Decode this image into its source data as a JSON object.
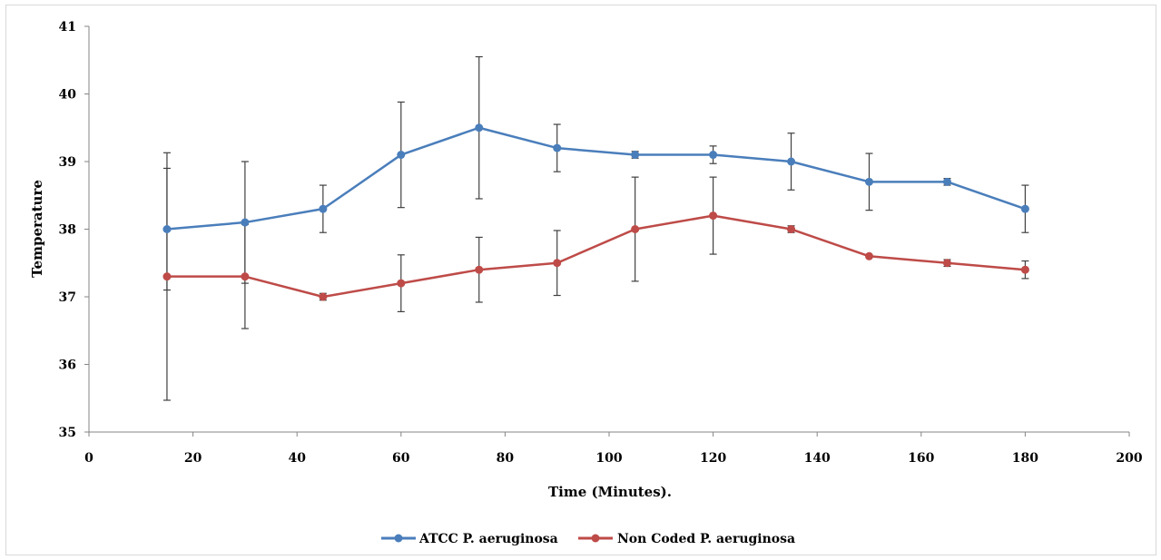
{
  "chart_data": {
    "type": "line",
    "title": "",
    "xlabel": "Time (Minutes).",
    "ylabel": "Temperature",
    "xlim": [
      0,
      200
    ],
    "ylim": [
      35,
      41
    ],
    "x_ticks": [
      0,
      20,
      40,
      60,
      80,
      100,
      120,
      140,
      160,
      180,
      200
    ],
    "y_ticks": [
      35,
      36,
      37,
      38,
      39,
      40,
      41
    ],
    "grid": false,
    "legend_position": "bottom",
    "x": [
      15,
      30,
      45,
      60,
      75,
      90,
      105,
      120,
      135,
      150,
      165,
      180
    ],
    "series": [
      {
        "name": "ATCC P. aeruginosa",
        "color": "#4a7ebb",
        "values": [
          38.0,
          38.1,
          38.3,
          39.1,
          39.5,
          39.2,
          39.1,
          39.1,
          39.0,
          38.7,
          38.7,
          38.3
        ],
        "error": [
          0.9,
          0.9,
          0.35,
          0.78,
          1.05,
          0.35,
          0.05,
          0.13,
          0.42,
          0.42,
          0.05,
          0.35
        ]
      },
      {
        "name": "Non Coded P. aeruginosa",
        "color": "#be4b48",
        "values": [
          37.3,
          37.3,
          37.0,
          37.2,
          37.4,
          37.5,
          38.0,
          38.2,
          38.0,
          37.6,
          37.5,
          37.4
        ],
        "error": [
          1.83,
          0.77,
          0.05,
          0.42,
          0.48,
          0.48,
          0.77,
          0.57,
          0.05,
          0.0,
          0.05,
          0.13
        ]
      }
    ]
  }
}
